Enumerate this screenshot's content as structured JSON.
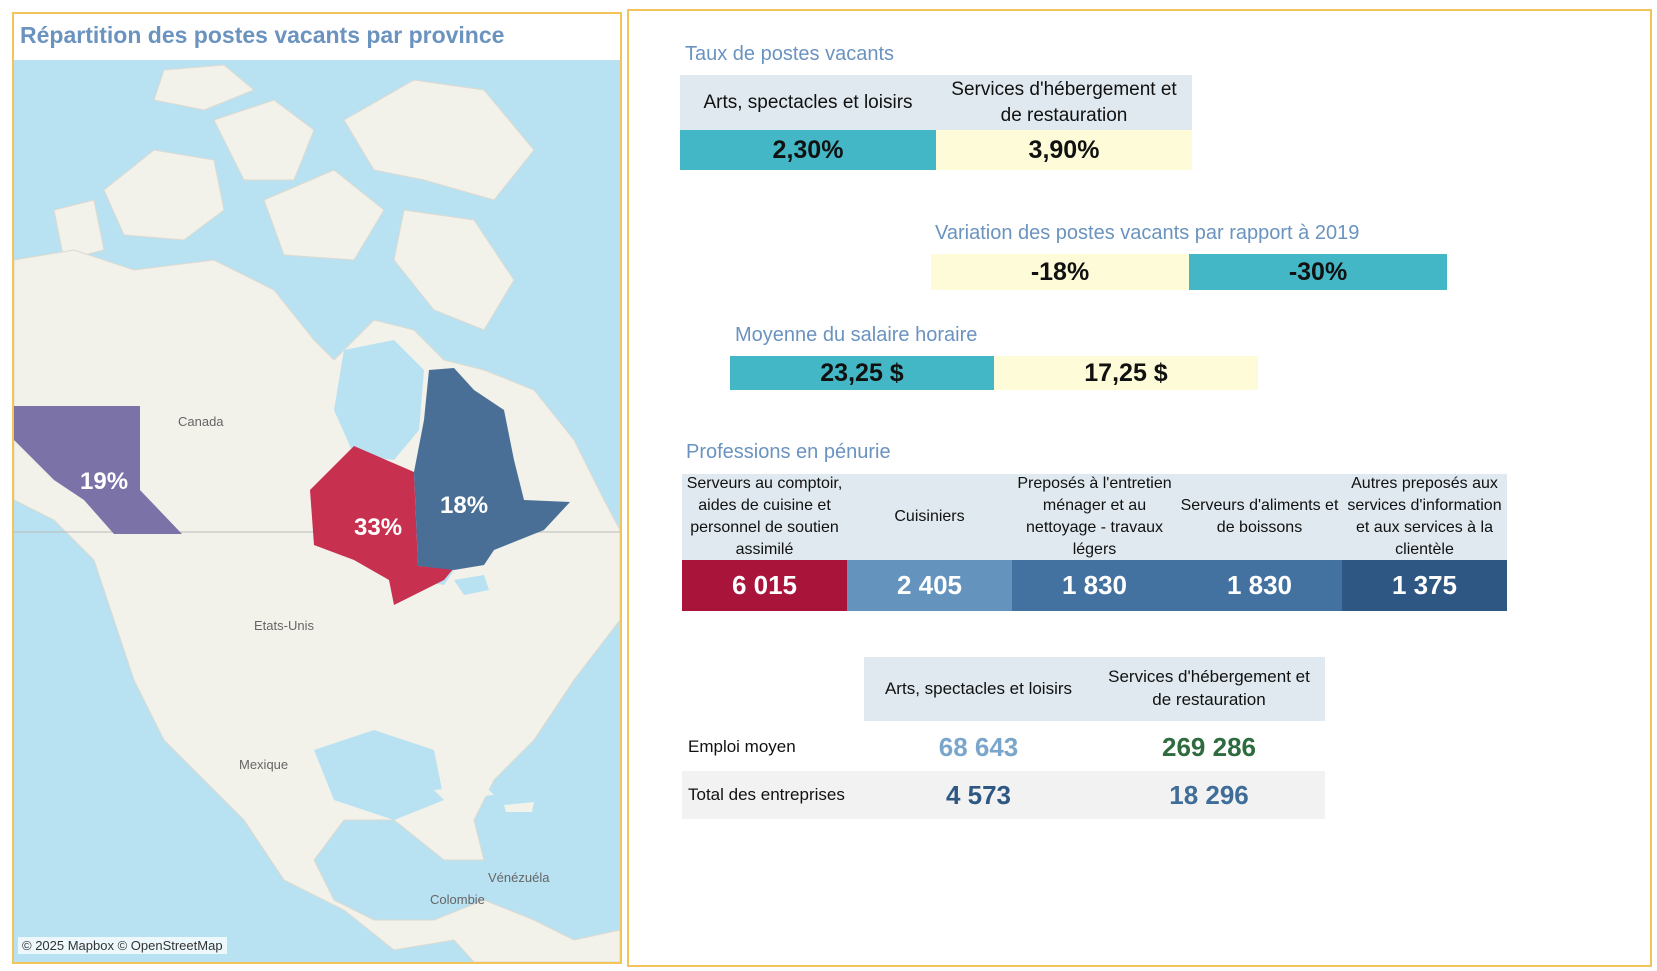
{
  "map": {
    "title": "Répartition des postes vacants par province",
    "attribution": "© 2025 Mapbox © OpenStreetMap",
    "labels": {
      "canada": "Canada",
      "usa": "Etats-Unis",
      "mexico": "Mexique",
      "venezuela": "Vénézuéla",
      "colombia": "Colombie"
    },
    "provinces": [
      {
        "name": "bc",
        "pct": "19%",
        "color": "#7b73a8"
      },
      {
        "name": "ontario",
        "pct": "33%",
        "color": "#c8304f"
      },
      {
        "name": "quebec",
        "pct": "18%",
        "color": "#4a6f96"
      }
    ]
  },
  "rate": {
    "title": "Taux de postes vacants",
    "col1": "Arts, spectacles et loisirs",
    "col2": "Services d'hébergement et de restauration",
    "val1": "2,30%",
    "val2": "3,90%"
  },
  "variation": {
    "title": "Variation des postes vacants par rapport à 2019",
    "val1": "-18%",
    "val2": "-30%"
  },
  "wage": {
    "title": "Moyenne du salaire horaire",
    "val1": "23,25 $",
    "val2": "17,25 $"
  },
  "shortage": {
    "title": "Professions en pénurie",
    "items": [
      {
        "label": "Serveurs au comptoir, aides de cuisine et personnel de soutien assimilé",
        "value": "6 015",
        "color": "#a8143a"
      },
      {
        "label": "Cuisiniers",
        "value": "2 405",
        "color": "#6493bd"
      },
      {
        "label": "Preposés à l'entretien ménager et au nettoyage - travaux légers",
        "value": "1 830",
        "color": "#4472a0"
      },
      {
        "label": "Serveurs d'aliments et de boissons",
        "value": "1 830",
        "color": "#4472a0"
      },
      {
        "label": "Autres preposés aux services d'information et aux services à la clientèle",
        "value": "1 375",
        "color": "#2e5883"
      }
    ]
  },
  "table": {
    "col1": "Arts, spectacles et loisirs",
    "col2": "Services d'hébergement et de restauration",
    "rows": [
      {
        "label": "Emploi moyen",
        "v1": "68 643",
        "v2": "269 286",
        "c1": "#7aa6cc",
        "c2": "#2e6b3e"
      },
      {
        "label": "Total des entreprises",
        "v1": "4 573",
        "v2": "18 296",
        "c1": "#2e5883",
        "c2": "#3f6d99"
      }
    ]
  }
}
